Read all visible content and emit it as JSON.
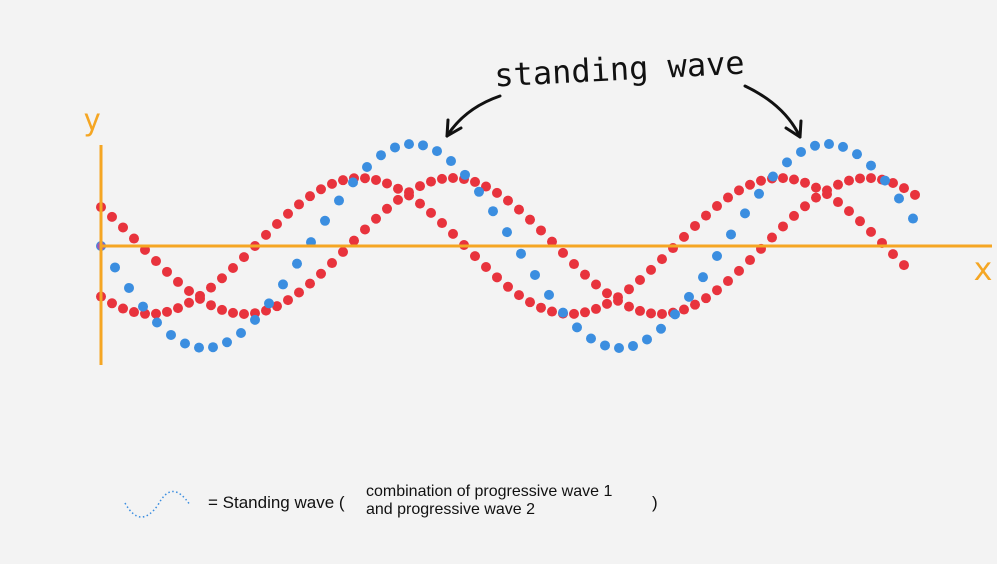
{
  "annotation": "standing wave",
  "axes": {
    "y": "y",
    "x": "x"
  },
  "legend": {
    "lead": "= Standing wave (",
    "line1": "combination of progressive wave 1",
    "line2": "and progressive wave 2",
    "close": ")"
  }
}
